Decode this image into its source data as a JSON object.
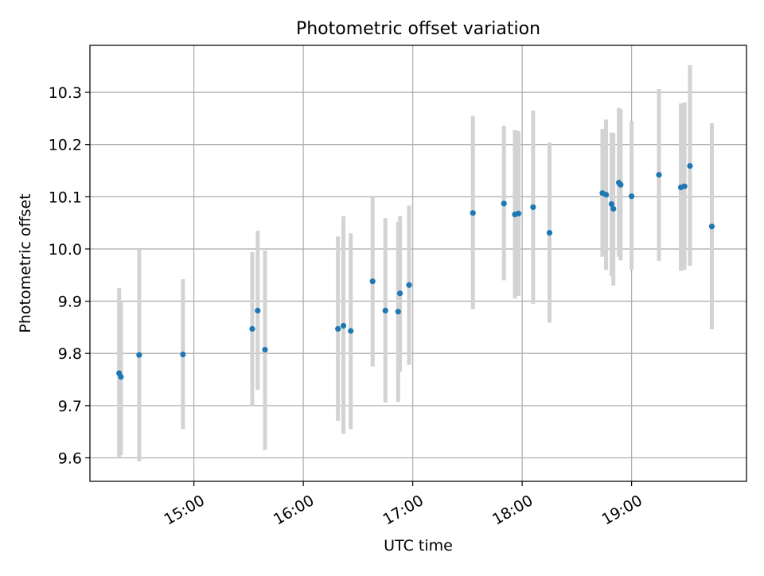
{
  "chart_data": {
    "type": "scatter",
    "title": "Photometric offset variation",
    "xlabel": "UTC time",
    "ylabel": "Photometric offset",
    "x_unit": "time of day (UTC)",
    "xlim": [
      "14:03",
      "20:03"
    ],
    "ylim": [
      9.555,
      10.39
    ],
    "x_ticks": [
      "15:00",
      "16:00",
      "17:00",
      "18:00",
      "19:00"
    ],
    "y_ticks": [
      9.6,
      9.7,
      9.8,
      9.9,
      10.0,
      10.1,
      10.2,
      10.3
    ],
    "y_tick_labels": [
      "9.6",
      "9.7",
      "9.8",
      "9.9",
      "10.0",
      "10.1",
      "10.2",
      "10.3"
    ],
    "grid": true,
    "legend": "none",
    "colors": {
      "points": "#1f77b4",
      "error_bars": "#d3d3d3",
      "grid": "#b0b0b0"
    },
    "series": [
      {
        "points": [
          {
            "x": "14:19",
            "y": 9.762,
            "err_low": 9.6,
            "err_high": 9.925
          },
          {
            "x": "14:20",
            "y": 9.755,
            "err_low": 9.605,
            "err_high": 9.9
          },
          {
            "x": "14:30",
            "y": 9.797,
            "err_low": 9.593,
            "err_high": 10.0
          },
          {
            "x": "14:54",
            "y": 9.798,
            "err_low": 9.655,
            "err_high": 9.942
          },
          {
            "x": "15:32",
            "y": 9.847,
            "err_low": 9.7,
            "err_high": 9.994
          },
          {
            "x": "15:35",
            "y": 9.882,
            "err_low": 9.73,
            "err_high": 10.035
          },
          {
            "x": "15:39",
            "y": 9.807,
            "err_low": 9.615,
            "err_high": 9.997
          },
          {
            "x": "16:19",
            "y": 9.847,
            "err_low": 9.671,
            "err_high": 10.024
          },
          {
            "x": "16:22",
            "y": 9.853,
            "err_low": 9.646,
            "err_high": 10.063
          },
          {
            "x": "16:26",
            "y": 9.843,
            "err_low": 9.655,
            "err_high": 10.03
          },
          {
            "x": "16:38",
            "y": 9.938,
            "err_low": 9.775,
            "err_high": 10.1
          },
          {
            "x": "16:45",
            "y": 9.882,
            "err_low": 9.706,
            "err_high": 10.059
          },
          {
            "x": "16:52",
            "y": 9.88,
            "err_low": 9.707,
            "err_high": 10.052
          },
          {
            "x": "16:53",
            "y": 9.915,
            "err_low": 9.765,
            "err_high": 10.063
          },
          {
            "x": "16:58",
            "y": 9.931,
            "err_low": 9.778,
            "err_high": 10.083
          },
          {
            "x": "17:33",
            "y": 10.069,
            "err_low": 9.885,
            "err_high": 10.255
          },
          {
            "x": "17:50",
            "y": 10.087,
            "err_low": 9.94,
            "err_high": 10.236
          },
          {
            "x": "17:56",
            "y": 10.066,
            "err_low": 9.905,
            "err_high": 10.228
          },
          {
            "x": "17:58",
            "y": 10.068,
            "err_low": 9.91,
            "err_high": 10.226
          },
          {
            "x": "18:06",
            "y": 10.08,
            "err_low": 9.895,
            "err_high": 10.265
          },
          {
            "x": "18:15",
            "y": 10.031,
            "err_low": 9.859,
            "err_high": 10.204
          },
          {
            "x": "18:44",
            "y": 10.107,
            "err_low": 9.985,
            "err_high": 10.23
          },
          {
            "x": "18:46",
            "y": 10.104,
            "err_low": 9.96,
            "err_high": 10.248
          },
          {
            "x": "18:49",
            "y": 10.086,
            "err_low": 9.948,
            "err_high": 10.223
          },
          {
            "x": "18:50",
            "y": 10.077,
            "err_low": 9.93,
            "err_high": 10.222
          },
          {
            "x": "18:53",
            "y": 10.127,
            "err_low": 9.985,
            "err_high": 10.27
          },
          {
            "x": "18:54",
            "y": 10.123,
            "err_low": 9.978,
            "err_high": 10.268
          },
          {
            "x": "19:00",
            "y": 10.101,
            "err_low": 9.96,
            "err_high": 10.245
          },
          {
            "x": "19:15",
            "y": 10.142,
            "err_low": 9.977,
            "err_high": 10.306
          },
          {
            "x": "19:27",
            "y": 10.118,
            "err_low": 9.958,
            "err_high": 10.279
          },
          {
            "x": "19:29",
            "y": 10.12,
            "err_low": 9.96,
            "err_high": 10.281
          },
          {
            "x": "19:32",
            "y": 10.159,
            "err_low": 9.968,
            "err_high": 10.352
          },
          {
            "x": "19:44",
            "y": 10.043,
            "err_low": 9.846,
            "err_high": 10.241
          }
        ]
      }
    ]
  }
}
